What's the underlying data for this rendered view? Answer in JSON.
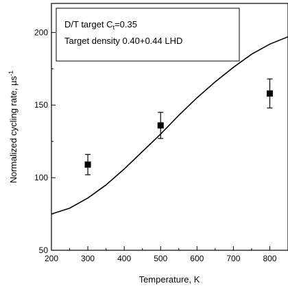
{
  "chart_data": {
    "type": "scatter",
    "xlabel": "Temperature, K",
    "ylabel": "Normalized cycling rate, µs",
    "ylabel_superscript": "-1",
    "xlim": [
      200,
      850
    ],
    "ylim": [
      50,
      220
    ],
    "x_ticks": [
      200,
      300,
      400,
      500,
      600,
      700,
      800
    ],
    "y_ticks": [
      50,
      100,
      150,
      200
    ],
    "grid": false,
    "legend_box": {
      "placement": "top-left",
      "line1_prefix": "D/T target C",
      "line1_sub": "t",
      "line1_suffix": "=0.35",
      "line2": "Target density 0.40+0.44 LHD"
    },
    "series": [
      {
        "kind": "points",
        "marker": "square",
        "points": [
          {
            "x": 300,
            "y": 109,
            "err": 7
          },
          {
            "x": 500,
            "y": 136,
            "err": 9
          },
          {
            "x": 800,
            "y": 158,
            "err": 10
          }
        ]
      },
      {
        "kind": "line",
        "x": [
          200,
          250,
          300,
          350,
          400,
          450,
          500,
          550,
          600,
          650,
          700,
          750,
          800,
          850
        ],
        "y": [
          75,
          79,
          86,
          95,
          106,
          118,
          130,
          143,
          155,
          166,
          176,
          185,
          192,
          197
        ]
      }
    ]
  }
}
